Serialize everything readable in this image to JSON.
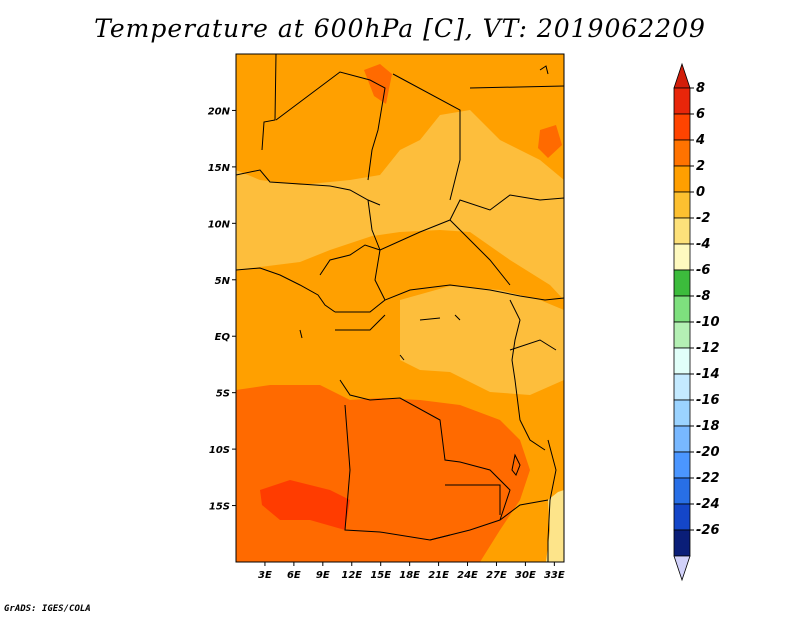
{
  "title": "Temperature at 600hPa [C], VT: 2019062209",
  "footer": "GrADS: IGES/COLA",
  "map": {
    "lon_range": [
      0,
      34
    ],
    "lat_range": [
      -20,
      25
    ],
    "lon_ticks": [
      "3E",
      "6E",
      "9E",
      "12E",
      "15E",
      "18E",
      "21E",
      "24E",
      "27E",
      "30E",
      "33E"
    ],
    "lat_ticks": [
      "20N",
      "15N",
      "10N",
      "5N",
      "EQ",
      "5S",
      "10S",
      "15S"
    ],
    "fields": {
      "base": "#ffa000",
      "band_north_warm": "#fdbe3c",
      "band_south_warm": "#ff6a00",
      "hot_core": "#ff3c00",
      "cool_east": "#fde48a"
    }
  },
  "colorbar": {
    "labels": [
      "8",
      "6",
      "4",
      "2",
      "0",
      "-2",
      "-4",
      "-6",
      "-8",
      "-10",
      "-12",
      "-14",
      "-16",
      "-18",
      "-20",
      "-22",
      "-24",
      "-26"
    ],
    "colors": [
      "#e8260a",
      "#ff4400",
      "#ff7300",
      "#ff9f00",
      "#fdc030",
      "#fde17a",
      "#fef9bf",
      "#3cbc3c",
      "#7ee07e",
      "#b4f0b4",
      "#e1fff9",
      "#c4eaff",
      "#9bd3ff",
      "#78b8ff",
      "#4b96ff",
      "#286fe6",
      "#1446c8",
      "#0a1e78"
    ],
    "top_arrow_color": "#d21e0a",
    "bottom_arrow_color": "#d2d2fa"
  }
}
